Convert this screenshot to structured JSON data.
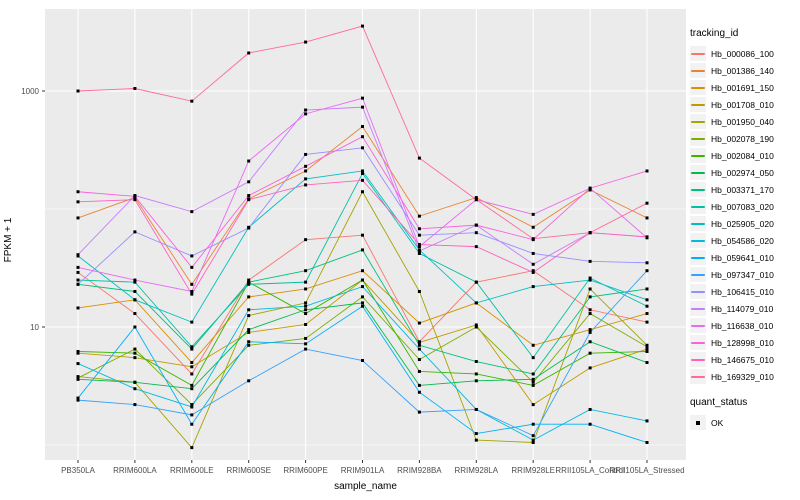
{
  "figure": {
    "background": "#FFFFFF",
    "panel_background": "#EBEBEB",
    "grid_color": "#FFFFFF",
    "tick_color": "#333333",
    "tick_label_color": "#4D4D4D",
    "point_color": "#000000"
  },
  "chart_data": {
    "type": "line",
    "title": "",
    "xlabel": "sample_name",
    "ylabel": "FPKM + 1",
    "y_scale": "log10",
    "ylim": [
      0.75,
      4950
    ],
    "y_major_ticks": [
      {
        "label": "10",
        "value": 10
      },
      {
        "label": "1000",
        "value": 1000
      }
    ],
    "y_minor_ticks": [
      1,
      100
    ],
    "grid": "on",
    "legend_position": "right",
    "point_shape": "filled-square",
    "categories": [
      "PB350LA",
      "RRIM600LA",
      "RRIM600LE",
      "RRIM600SE",
      "RRIM600PE",
      "RRIM901LA",
      "RRIM928BA",
      "RRIM928LA",
      "RRIM928LE",
      "RRII105LA_Control",
      "RRII105LA_Stressed"
    ],
    "series": [
      {
        "name": "Hb_000086_100",
        "color": "#F8766D",
        "values": [
          29,
          13,
          4.0,
          25,
          55,
          60,
          7.5,
          24,
          30,
          14,
          11
        ]
      },
      {
        "name": "Hb_001386_140",
        "color": "#EA8331",
        "values": [
          84,
          125,
          23,
          122,
          210,
          500,
          87,
          125,
          70,
          145,
          84
        ]
      },
      {
        "name": "Hb_001691_150",
        "color": "#D89000",
        "values": [
          14.5,
          17,
          5.0,
          18,
          21,
          30,
          10.8,
          16,
          7.0,
          9.5,
          13
        ]
      },
      {
        "name": "Hb_001708_010",
        "color": "#C09B00",
        "values": [
          6.0,
          5.5,
          4.6,
          9.0,
          10.5,
          25,
          7.4,
          10.4,
          2.2,
          4.5,
          6.5
        ]
      },
      {
        "name": "Hb_001950_040",
        "color": "#A3A500",
        "values": [
          3.8,
          3.4,
          0.95,
          12.5,
          16,
          140,
          20,
          1.1,
          1.05,
          21,
          7.0
        ]
      },
      {
        "name": "Hb_002078_190",
        "color": "#7CAE00",
        "values": [
          3.7,
          6.5,
          2.2,
          7.0,
          8.0,
          18,
          5.3,
          10,
          3.4,
          13,
          6.8
        ]
      },
      {
        "name": "Hb_002084_010",
        "color": "#39B600",
        "values": [
          6.2,
          6.0,
          3.2,
          24,
          13,
          25,
          4.2,
          4.0,
          3.2,
          6.0,
          6.2
        ]
      },
      {
        "name": "Hb_002974_050",
        "color": "#00BB4E",
        "values": [
          3.6,
          3.4,
          3.0,
          9.5,
          14,
          16,
          3.2,
          3.5,
          3.6,
          7.5,
          5.0
        ]
      },
      {
        "name": "Hb_003371_170",
        "color": "#00BF7D",
        "values": [
          23,
          20,
          6.5,
          24,
          30,
          45,
          7.0,
          5.1,
          4.0,
          18,
          21
        ]
      },
      {
        "name": "Hb_007083_020",
        "color": "#00C1A3",
        "values": [
          25,
          24,
          6.8,
          23,
          24,
          200,
          42,
          24,
          5.5,
          26,
          15
        ]
      },
      {
        "name": "Hb_025905_020",
        "color": "#00BFC4",
        "values": [
          40,
          17,
          11,
          70,
          180,
          210,
          45,
          16,
          22,
          25,
          17
        ]
      },
      {
        "name": "Hb_054586_020",
        "color": "#00BAE0",
        "values": [
          4.9,
          3.0,
          2.1,
          14,
          15,
          22,
          6.5,
          2.0,
          1.1,
          2.0,
          1.6
        ]
      },
      {
        "name": "Hb_059641_010",
        "color": "#00B0F6",
        "values": [
          2.5,
          10,
          1.5,
          7.5,
          7.2,
          15,
          2.8,
          1.25,
          1.5,
          1.5,
          1.05
        ]
      },
      {
        "name": "Hb_097347_010",
        "color": "#35A2FF",
        "values": [
          2.4,
          2.2,
          1.8,
          3.5,
          6.5,
          5.2,
          1.9,
          2.0,
          1.2,
          9.0,
          30
        ]
      },
      {
        "name": "Hb_106415_010",
        "color": "#9590FF",
        "values": [
          23,
          64,
          40,
          69,
          290,
          330,
          60,
          63,
          42,
          36,
          35
        ]
      },
      {
        "name": "Hb_114079_010",
        "color": "#C77CFF",
        "values": [
          41,
          130,
          95,
          170,
          690,
          730,
          44,
          73,
          34,
          63,
          58
        ]
      },
      {
        "name": "Hb_116638_010",
        "color": "#E76BF3",
        "values": [
          32,
          25,
          20,
          255,
          640,
          870,
          48,
          120,
          90,
          150,
          57
        ]
      },
      {
        "name": "Hb_128998_010",
        "color": "#FA62DB",
        "values": [
          140,
          128,
          32,
          130,
          230,
          410,
          68,
          73,
          55,
          150,
          210
        ]
      },
      {
        "name": "Hb_146675_010",
        "color": "#FF62BC",
        "values": [
          115,
          120,
          19,
          120,
          160,
          175,
          50,
          48,
          29,
          63,
          58
        ]
      },
      {
        "name": "Hb_169329_010",
        "color": "#FF6A98",
        "values": [
          1000,
          1050,
          820,
          2100,
          2600,
          3550,
          270,
          120,
          56,
          63,
          112
        ]
      }
    ]
  },
  "legend": {
    "tracking_title": "tracking_id",
    "quant_title": "quant_status",
    "quant_items": [
      {
        "label": "OK"
      }
    ]
  }
}
